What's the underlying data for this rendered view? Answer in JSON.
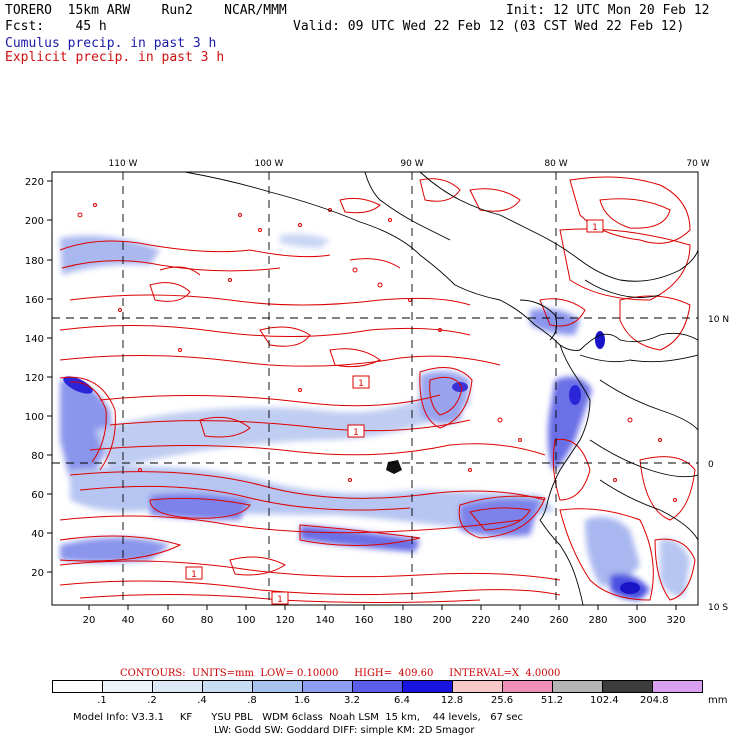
{
  "header": {
    "run_name": "TORERO  15km ARW    Run2    NCAR/MMM",
    "init": "Init: 12 UTC Mon 20 Feb 12",
    "fcst": "Fcst:    45 h",
    "valid": "Valid: 09 UTC Wed 22 Feb 12 (03 CST Wed 22 Feb 12)",
    "cumulus_label": "Cumulus precip. in past 3 h",
    "explicit_label": "Explicit precip. in past 3 h"
  },
  "colors": {
    "cumulus": "#1a1aa6",
    "explicit": "#d01010",
    "contour": "#dd0000"
  },
  "map": {
    "lon_labels": [
      "110 W",
      "100 W",
      "90 W",
      "80 W",
      "70 W"
    ],
    "lat_labels": [
      "10 N",
      "0",
      "10 S"
    ],
    "y_ticks": [
      "220",
      "200",
      "180",
      "160",
      "140",
      "120",
      "100",
      "80",
      "60",
      "40",
      "20"
    ],
    "x_ticks": [
      "20",
      "40",
      "60",
      "80",
      "100",
      "120",
      "140",
      "160",
      "180",
      "200",
      "220",
      "240",
      "260",
      "280",
      "300",
      "320"
    ],
    "contour_box_labels": [
      "1",
      "1",
      "1",
      "1",
      "1"
    ]
  },
  "footer": {
    "contours_line": "CONTOURS:  UNITS=mm  LOW= 0.10000     HIGH=  409.60     INTERVAL=X  4.0000",
    "legend_labels": [
      ".1",
      ".2",
      ".4",
      ".8",
      "1.6",
      "3.2",
      "6.4",
      "12.8",
      "25.6",
      "51.2",
      "102.4",
      "204.8"
    ],
    "legend_unit": "mm",
    "legend_colors": [
      "#ffffff",
      "#eef4fb",
      "#dde9f7",
      "#c8dcf3",
      "#a9c3ef",
      "#8c9ef2",
      "#5a5ee8",
      "#1a14e0",
      "#f7c8c8",
      "#f090b8",
      "#b4b4b4",
      "#3c3c3c",
      "#d9a0f0"
    ],
    "model_info_1": "Model Info: V3.3.1     KF      YSU PBL   WDM 6class  Noah LSM  15 km,    44 levels,   67 sec",
    "model_info_2": "LW: Godd SW: Goddard DIFF: simple KM: 2D Smagor"
  }
}
